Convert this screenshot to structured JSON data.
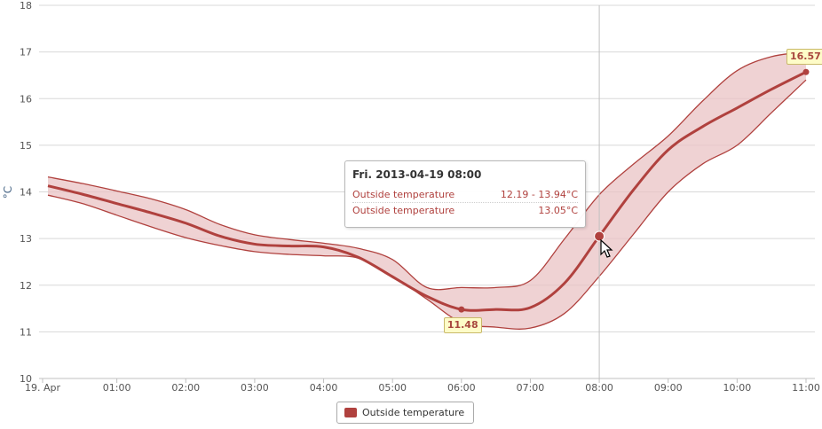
{
  "chart_data": {
    "type": "area",
    "x": [
      "00:00",
      "00:30",
      "01:00",
      "01:30",
      "02:00",
      "02:30",
      "03:00",
      "03:30",
      "04:00",
      "04:30",
      "05:00",
      "05:30",
      "06:00",
      "06:30",
      "07:00",
      "07:30",
      "08:00",
      "08:30",
      "09:00",
      "09:30",
      "10:00",
      "10:30",
      "11:00"
    ],
    "series": [
      {
        "name": "Outside temperature",
        "kind": "range",
        "low": [
          13.93,
          13.75,
          13.5,
          13.25,
          13.02,
          12.85,
          12.72,
          12.66,
          12.63,
          12.58,
          12.2,
          11.7,
          11.2,
          11.1,
          11.08,
          11.4,
          12.19,
          13.1,
          14.0,
          14.6,
          15.0,
          15.7,
          16.4
        ],
        "high": [
          14.32,
          14.18,
          14.02,
          13.85,
          13.62,
          13.3,
          13.08,
          12.98,
          12.9,
          12.79,
          12.55,
          11.95,
          11.95,
          11.95,
          12.1,
          13.0,
          13.94,
          14.6,
          15.2,
          15.95,
          16.6,
          16.9,
          17.0
        ]
      },
      {
        "name": "Outside temperature",
        "kind": "line",
        "values": [
          14.13,
          13.95,
          13.75,
          13.55,
          13.33,
          13.05,
          12.88,
          12.84,
          12.82,
          12.6,
          12.18,
          11.76,
          11.48,
          11.48,
          11.52,
          12.05,
          13.05,
          14.05,
          14.9,
          15.4,
          15.8,
          16.2,
          16.57
        ]
      }
    ],
    "x_tick_labels": [
      "19. Apr",
      "01:00",
      "02:00",
      "03:00",
      "04:00",
      "05:00",
      "06:00",
      "07:00",
      "08:00",
      "09:00",
      "10:00",
      "11:00"
    ],
    "y_tick_labels": [
      "10",
      "11",
      "12",
      "13",
      "14",
      "15",
      "16",
      "17",
      "18"
    ],
    "ylim": [
      10,
      18
    ],
    "ylabel": "°C",
    "grid": true,
    "legend": "bottom-center",
    "colors": {
      "series": "#b0413e",
      "band_fill": "#e9c3c4",
      "grid": "#d8d8d8",
      "crosshair": "#c0c0c0",
      "flag_bg": "#fefcc8"
    },
    "hover_index": 16,
    "flag_indices": [
      12,
      22
    ],
    "flags": [
      {
        "label": "11.48"
      },
      {
        "label": "16.57"
      }
    ],
    "tooltip": {
      "title": "Fri. 2013-04-19 08:00",
      "rows": [
        {
          "name": "Outside temperature",
          "value": "12.19 - 13.94°C"
        },
        {
          "name": "Outside temperature",
          "value": "13.05°C"
        }
      ]
    },
    "legend_items": [
      {
        "label": "Outside temperature",
        "color": "#b0413e"
      }
    ]
  }
}
